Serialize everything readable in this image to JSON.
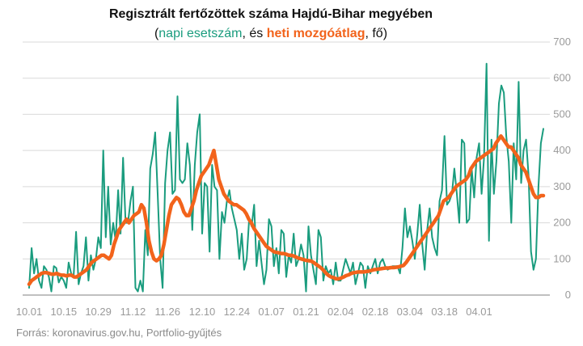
{
  "title": "Regisztrált fertőzöttek száma Hajdú-Bihar megyében",
  "subtitle": {
    "open": "(",
    "part1": "napi esetszám",
    "mid": ", és ",
    "part2": "heti mozgóátlag",
    "close": ", fő)"
  },
  "source": "Forrás: koronavirus.gov.hu, Portfolio-gyűjtés",
  "colors": {
    "daily": "#1a9c7e",
    "avg": "#f2631b",
    "grid": "#d9d9d9",
    "axis": "#9a9a9a"
  },
  "chart_data": {
    "type": "line",
    "x_start": "10.01",
    "x_ticks": [
      "10.01",
      "10.15",
      "10.29",
      "11.12",
      "11.26",
      "12.10",
      "12.24",
      "01.07",
      "01.21",
      "02.04",
      "02.18",
      "03.04",
      "03.18",
      "04.01"
    ],
    "y_ticks": [
      0,
      100,
      200,
      300,
      400,
      500,
      600,
      700
    ],
    "ylim": [
      0,
      700
    ],
    "xlabel": "",
    "ylabel": "",
    "grid": true,
    "series": [
      {
        "name": "napi esetszám",
        "values": [
          20,
          130,
          60,
          100,
          40,
          20,
          80,
          70,
          50,
          10,
          80,
          75,
          35,
          50,
          40,
          20,
          90,
          60,
          50,
          175,
          30,
          60,
          80,
          160,
          40,
          110,
          70,
          100,
          160,
          130,
          400,
          160,
          300,
          140,
          200,
          150,
          290,
          170,
          380,
          200,
          200,
          260,
          300,
          20,
          10,
          40,
          10,
          180,
          110,
          350,
          390,
          450,
          280,
          100,
          20,
          310,
          400,
          450,
          280,
          290,
          550,
          320,
          310,
          320,
          420,
          360,
          180,
          360,
          450,
          500,
          170,
          310,
          300,
          120,
          360,
          300,
          290,
          100,
          230,
          200,
          260,
          290,
          240,
          210,
          180,
          100,
          170,
          70,
          100,
          210,
          190,
          250,
          80,
          150,
          90,
          30,
          70,
          210,
          190,
          80,
          130,
          60,
          180,
          170,
          50,
          110,
          90,
          170,
          80,
          100,
          140,
          110,
          10,
          190,
          110,
          70,
          30,
          180,
          160,
          40,
          80,
          60,
          70,
          30,
          90,
          40,
          40,
          70,
          100,
          80,
          60,
          90,
          30,
          60,
          90,
          80,
          20,
          80,
          60,
          80,
          100,
          60,
          90,
          100,
          80,
          70,
          75,
          80,
          80,
          80,
          60,
          130,
          240,
          160,
          190,
          150,
          100,
          170,
          250,
          140,
          70,
          180,
          240,
          160,
          130,
          110,
          260,
          290,
          440,
          250,
          260,
          280,
          350,
          280,
          200,
          430,
          420,
          200,
          210,
          350,
          270,
          380,
          420,
          280,
          380,
          640,
          150,
          430,
          280,
          370,
          530,
          580,
          560,
          440,
          370,
          200,
          420,
          320,
          590,
          310,
          400,
          430,
          330,
          120,
          70,
          100,
          300,
          420,
          460
        ]
      },
      {
        "name": "heti mozgóátlag",
        "values": [
          30,
          40,
          45,
          50,
          55,
          60,
          62,
          62,
          60,
          58,
          58,
          60,
          57,
          55,
          55,
          53,
          55,
          55,
          50,
          50,
          55,
          60,
          65,
          70,
          80,
          90,
          95,
          100,
          105,
          110,
          110,
          105,
          100,
          110,
          140,
          160,
          180,
          190,
          200,
          210,
          200,
          210,
          220,
          225,
          230,
          250,
          240,
          200,
          150,
          120,
          100,
          95,
          100,
          110,
          140,
          180,
          220,
          250,
          260,
          270,
          265,
          250,
          230,
          220,
          220,
          240,
          260,
          290,
          310,
          330,
          340,
          350,
          360,
          380,
          400,
          360,
          320,
          300,
          280,
          270,
          260,
          255,
          250,
          250,
          245,
          240,
          235,
          225,
          210,
          200,
          185,
          175,
          165,
          155,
          145,
          135,
          130,
          125,
          120,
          118,
          117,
          115,
          115,
          113,
          110,
          110,
          108,
          105,
          102,
          100,
          98,
          96,
          95,
          94,
          90,
          85,
          80,
          75,
          68,
          60,
          54,
          50,
          48,
          45,
          45,
          47,
          50,
          54,
          56,
          60,
          62,
          63,
          64,
          64,
          64,
          65,
          66,
          68,
          70,
          71,
          72,
          73,
          74,
          75,
          75,
          76,
          76,
          77,
          78,
          80,
          82,
          90,
          100,
          110,
          120,
          130,
          140,
          150,
          160,
          170,
          180,
          190,
          200,
          210,
          220,
          240,
          260,
          265,
          270,
          280,
          290,
          300,
          305,
          310,
          315,
          320,
          330,
          350,
          360,
          370,
          375,
          380,
          385,
          390,
          395,
          400,
          405,
          420,
          430,
          440,
          430,
          420,
          410,
          410,
          400,
          390,
          380,
          360,
          350,
          340,
          320,
          300,
          280,
          270,
          270,
          275,
          275
        ]
      }
    ]
  }
}
